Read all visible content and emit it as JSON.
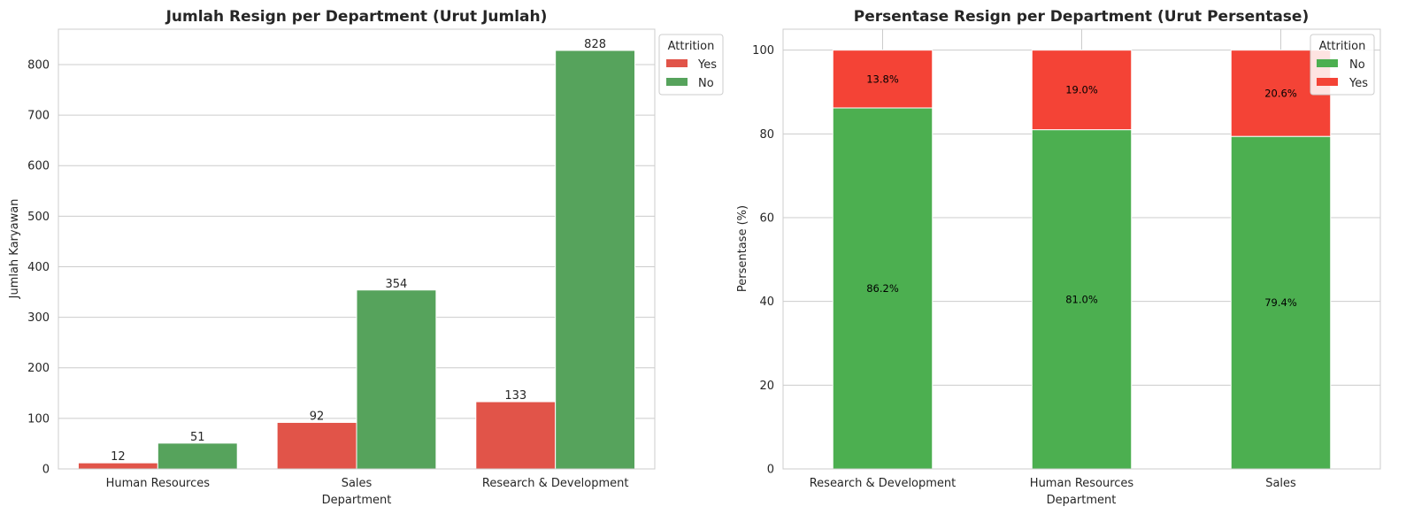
{
  "chart_data": [
    {
      "type": "bar",
      "title": "Jumlah Resign per Department (Urut Jumlah)",
      "xlabel": "Department",
      "ylabel": "Jumlah Karyawan",
      "categories": [
        "Human Resources",
        "Sales",
        "Research & Development"
      ],
      "series": [
        {
          "name": "Yes",
          "values": [
            12,
            92,
            133
          ],
          "color": "#e15449"
        },
        {
          "name": "No",
          "values": [
            51,
            354,
            828
          ],
          "color": "#56a35c"
        }
      ],
      "ylim": [
        0,
        870
      ],
      "yticks": [
        0,
        100,
        200,
        300,
        400,
        500,
        600,
        700,
        800
      ],
      "grid": true,
      "legend": {
        "title": "Attrition",
        "placement": "upper-right-outside"
      }
    },
    {
      "type": "bar",
      "stacked": true,
      "title": "Persentase Resign per Department (Urut Persentase)",
      "xlabel": "Department",
      "ylabel": "Persentase (%)",
      "categories": [
        "Research & Development",
        "Human Resources",
        "Sales"
      ],
      "series": [
        {
          "name": "No",
          "values": [
            86.2,
            81.0,
            79.4
          ],
          "labels": [
            "86.2%",
            "81.0%",
            "79.4%"
          ],
          "color": "#4caf50"
        },
        {
          "name": "Yes",
          "values": [
            13.8,
            19.0,
            20.6
          ],
          "labels": [
            "13.8%",
            "19.0%",
            "20.6%"
          ],
          "color": "#f44336"
        }
      ],
      "ylim": [
        0,
        105
      ],
      "yticks": [
        0,
        20,
        40,
        60,
        80,
        100
      ],
      "grid": true,
      "legend": {
        "title": "Attrition",
        "placement": "top-right"
      }
    }
  ]
}
